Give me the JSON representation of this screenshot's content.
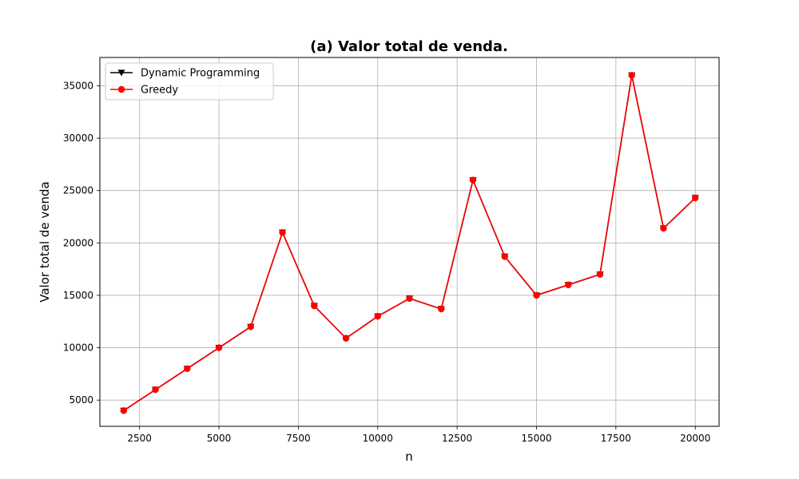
{
  "chart_data": {
    "type": "line",
    "title": "(a) Valor total de venda.",
    "xlabel": "n",
    "ylabel": "Valor total de venda",
    "xlim": [
      1250,
      20750
    ],
    "ylim": [
      2500,
      37700
    ],
    "xticks": [
      2500,
      5000,
      7500,
      10000,
      12500,
      15000,
      17500,
      20000
    ],
    "xtick_labels": [
      "2500",
      "5000",
      "7500",
      "10000",
      "12500",
      "15000",
      "17500",
      "20000"
    ],
    "yticks": [
      5000,
      10000,
      15000,
      20000,
      25000,
      30000,
      35000
    ],
    "ytick_labels": [
      "5000",
      "10000",
      "15000",
      "20000",
      "25000",
      "30000",
      "35000"
    ],
    "grid": true,
    "legend_position": "top-left",
    "x": [
      2000,
      3000,
      4000,
      5000,
      6000,
      7000,
      8000,
      9000,
      10000,
      11000,
      12000,
      13000,
      14000,
      15000,
      16000,
      17000,
      18000,
      19000,
      20000
    ],
    "series": [
      {
        "name": "Dynamic Programming",
        "color": "#000000",
        "marker": "triangle-down",
        "values": [
          4000,
          6000,
          8000,
          10000,
          12000,
          21000,
          14000,
          10900,
          13000,
          14700,
          13700,
          26000,
          18700,
          15000,
          16000,
          17000,
          36000,
          21400,
          24300
        ]
      },
      {
        "name": "Greedy",
        "color": "#ff0000",
        "marker": "circle",
        "values": [
          4000,
          6000,
          8000,
          10000,
          12000,
          21000,
          14000,
          10900,
          13000,
          14700,
          13700,
          26000,
          18700,
          15000,
          16000,
          17000,
          36000,
          21400,
          24300
        ]
      }
    ]
  }
}
